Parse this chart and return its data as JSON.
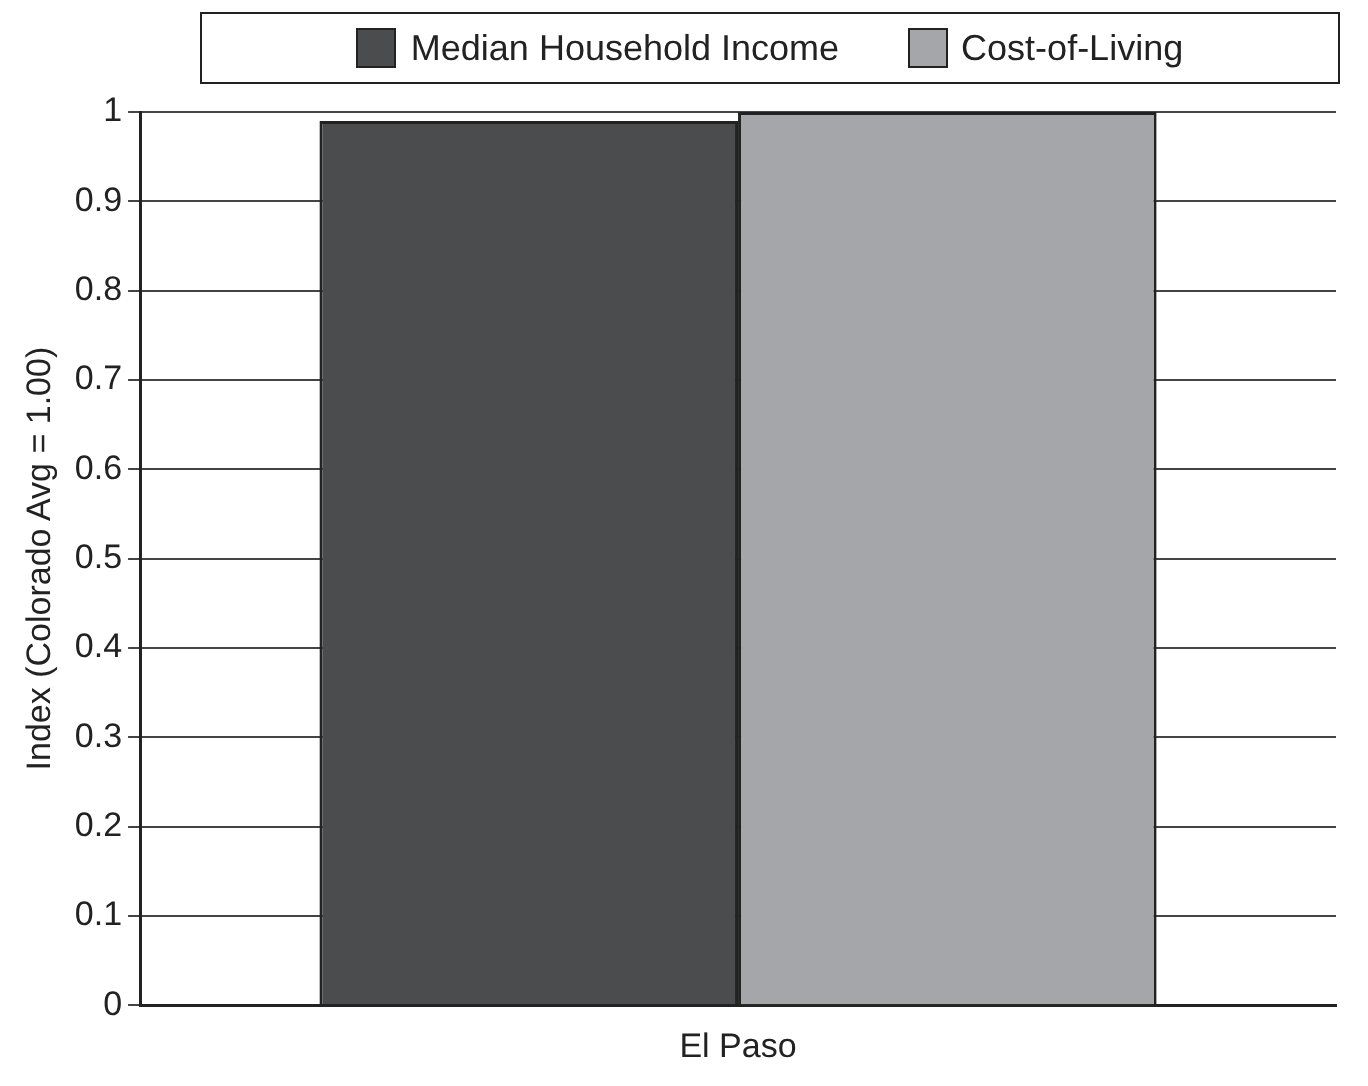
{
  "chart_data": {
    "type": "bar",
    "ylabel": "Index (Colorado Avg = 1.00)",
    "categories": [
      "El Paso"
    ],
    "series": [
      {
        "name": "Median Household Income",
        "color": "#4b4c4e",
        "values": [
          0.99
        ]
      },
      {
        "name": "Cost-of-Living",
        "color": "#a5a6a9",
        "values": [
          1.0
        ]
      }
    ],
    "ylim": [
      0,
      1
    ],
    "yticks": [
      0,
      0.1,
      0.2,
      0.3,
      0.4,
      0.5,
      0.6,
      0.7,
      0.8,
      0.9,
      1
    ],
    "grid": "y",
    "legend": "top"
  }
}
